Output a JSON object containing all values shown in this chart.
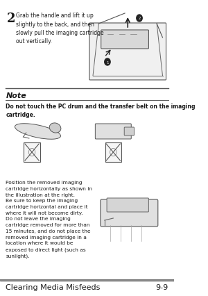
{
  "page_bg": "#ffffff",
  "footer_bg": "#ffffff",
  "title_text": "Clearing Media Misfeeds",
  "page_num": "9-9",
  "step_number": "2",
  "step_text": "Grab the handle and lift it up\nslightly to the back, and then\nslowly pull the imaging cartridge\nout vertically.",
  "note_label": "Note",
  "note_bold_text": "Do not touch the PC drum and the transfer belt on the imaging\ncartridge.",
  "body_text": "Position the removed imaging\ncartridge horizontally as shown in\nthe illustration at the right.\nBe sure to keep the imaging\ncartridge horizontal and place it\nwhere it will not become dirty.\nDo not leave the imaging\ncartridge removed for more than\n15 minutes, and do not place the\nremoved imaging cartridge in a\nlocation where it would be\nexposed to direct light (such as\nsunlight).",
  "line_color": "#888888",
  "text_color": "#1a1a1a",
  "footer_line_color": "#555555",
  "note_line_color": "#555555"
}
